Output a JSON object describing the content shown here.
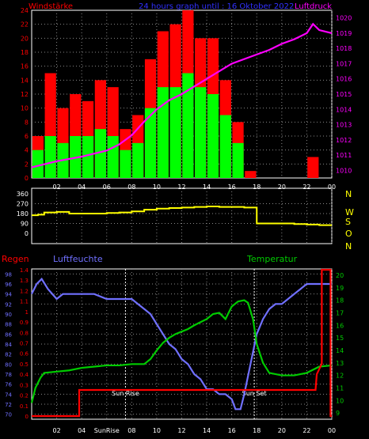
{
  "colors": {
    "wind_gust": "#ff0000",
    "wind_avg": "#00ff00",
    "pressure": "#ff00ff",
    "direction": "#ffff00",
    "rain": "#ff0000",
    "humidity": "#7070ff",
    "temperature": "#00cc00",
    "frame": "#ffffff",
    "grid": "#888888",
    "marker": "#ffffff"
  },
  "chart_data": [
    {
      "type": "bar",
      "title": "24 hours graph until : 16 Oktober 2022",
      "left_axis_label": "Windstärke",
      "right_axis_label": "Luftdruck",
      "x_ticks": [
        "02",
        "04",
        "06",
        "08",
        "10",
        "12",
        "14",
        "16",
        "18",
        "20",
        "22",
        "00"
      ],
      "y_left_ticks": [
        "0",
        "2",
        "4",
        "6",
        "8",
        "10",
        "12",
        "14",
        "16",
        "18",
        "20",
        "22",
        "24"
      ],
      "y_left_range": [
        0,
        24
      ],
      "y_right_ticks": [
        "1010",
        "1011",
        "1012",
        "1013",
        "1014",
        "1015",
        "1016",
        "1017",
        "1018",
        "1019",
        "1020"
      ],
      "y_right_range": [
        1009.5,
        1020.5
      ],
      "grid": "dotted",
      "series": [
        {
          "key": "wind_gust",
          "x": [
            0.5,
            1.5,
            2.5,
            3.5,
            4.5,
            5.5,
            6.5,
            7.5,
            8.5,
            9.5,
            10.5,
            11.5,
            12.5,
            13.5,
            14.5,
            15.5,
            16.5,
            17.5,
            18.5,
            19.5,
            20.5,
            21.5,
            22.5,
            23.5
          ],
          "values": [
            6,
            15,
            10,
            12,
            11,
            14,
            13,
            7,
            9,
            17,
            21,
            22,
            24,
            20,
            20,
            14,
            8,
            1,
            0,
            0,
            0,
            0,
            3,
            0
          ]
        },
        {
          "key": "wind_avg",
          "x": [
            0.5,
            1.5,
            2.5,
            3.5,
            4.5,
            5.5,
            6.5,
            7.5,
            8.5,
            9.5,
            10.5,
            11.5,
            12.5,
            13.5,
            14.5,
            15.5,
            16.5,
            17.5,
            18.5,
            19.5,
            20.5,
            21.5,
            22.5,
            23.5
          ],
          "values": [
            4,
            6,
            5,
            6,
            6,
            7,
            6,
            4,
            5,
            10,
            13,
            13,
            15,
            13,
            12,
            9,
            5,
            0,
            0,
            0,
            0,
            0,
            0,
            0
          ]
        },
        {
          "key": "pressure",
          "x": [
            0,
            2,
            4,
            6,
            7,
            8,
            9,
            10,
            11,
            12,
            13,
            14,
            15,
            16,
            18,
            19,
            20,
            21,
            22,
            22.5,
            23,
            24
          ],
          "values": [
            1010.2,
            1010.6,
            1010.9,
            1011.3,
            1011.7,
            1012.3,
            1013.2,
            1014,
            1014.6,
            1015,
            1015.5,
            1016,
            1016.5,
            1017,
            1017.6,
            1017.9,
            1018.3,
            1018.6,
            1019,
            1019.6,
            1019.2,
            1019.0
          ]
        }
      ]
    },
    {
      "type": "line",
      "right_axis_label_letters": [
        "N",
        "W",
        "S",
        "O",
        "N"
      ],
      "y_ticks": [
        "0",
        "90",
        "180",
        "270",
        "360"
      ],
      "y_range": [
        0,
        360
      ],
      "grid": "dotted",
      "series": [
        {
          "key": "direction",
          "x": [
            0,
            0.5,
            1,
            2,
            3,
            4,
            5,
            6,
            7,
            8,
            9,
            10,
            11,
            12,
            13,
            14,
            15,
            16,
            17,
            17.3,
            18,
            20,
            21,
            22,
            23,
            24
          ],
          "values": [
            165,
            170,
            190,
            195,
            180,
            180,
            180,
            185,
            190,
            200,
            215,
            225,
            230,
            235,
            240,
            245,
            240,
            240,
            235,
            235,
            90,
            90,
            85,
            80,
            75,
            75
          ]
        }
      ]
    },
    {
      "type": "line",
      "rain_label": "Regen",
      "humidity_label": "Luftfeuchte",
      "temperature_label": "Temperatur",
      "y_humidity_ticks": [
        "70",
        "72",
        "74",
        "76",
        "78",
        "80",
        "82",
        "84",
        "86",
        "88",
        "90",
        "92",
        "94",
        "96",
        "98"
      ],
      "y_humidity_range": [
        69,
        99
      ],
      "y_rain_ticks": [
        "0",
        "0.1",
        "0.2",
        "0.3",
        "0.4",
        "0.5",
        "0.6",
        "0.7",
        "0.8",
        "0.9",
        "1",
        "1.1",
        "1.2",
        "1.3",
        "1.4"
      ],
      "y_rain_range": [
        0,
        1.4
      ],
      "y_temp_ticks": [
        "9",
        "10",
        "11",
        "12",
        "13",
        "14",
        "15",
        "16",
        "17",
        "18",
        "19",
        "20"
      ],
      "y_temp_range": [
        8.5,
        20.5
      ],
      "x_ticks": [
        "02",
        "04",
        "SunRise",
        "08",
        "10",
        "12",
        "14",
        "16",
        "18",
        "20",
        "22",
        "00"
      ],
      "grid": "dotted",
      "markers": [
        {
          "label": "Sun Rise",
          "x": 7.5
        },
        {
          "label": "Sun Set",
          "x": 17.8
        }
      ],
      "series": [
        {
          "key": "humidity",
          "x": [
            0,
            0.4,
            0.8,
            1.3,
            2,
            2.5,
            3,
            4,
            5,
            6,
            7,
            8,
            8.5,
            9,
            9.5,
            10,
            10.5,
            11,
            11.5,
            12,
            12.5,
            13,
            13.5,
            14,
            14.5,
            15,
            15.5,
            16,
            16.3,
            16.7,
            17,
            17.5,
            18,
            18.5,
            19,
            19.5,
            20,
            20.5,
            21,
            21.5,
            22,
            23,
            24
          ],
          "values": [
            94,
            96,
            97,
            95,
            93,
            94,
            94,
            94,
            94,
            93,
            93,
            93,
            92,
            91,
            90,
            88,
            86,
            84,
            83,
            81,
            80,
            78,
            77,
            75,
            75,
            74,
            74,
            73,
            71,
            71,
            74,
            80,
            86,
            89,
            91,
            92,
            92,
            93,
            94,
            95,
            96,
            96,
            96
          ]
        },
        {
          "key": "temperature",
          "x": [
            0,
            0.3,
            0.7,
            1,
            2,
            3,
            4,
            5,
            6,
            7,
            8,
            9,
            9.5,
            10,
            10.5,
            11,
            11.5,
            12,
            12.5,
            13,
            14,
            14.5,
            15,
            15.5,
            16,
            16.5,
            17,
            17.3,
            17.7,
            18,
            18.5,
            19,
            20,
            21,
            22,
            23,
            24
          ],
          "values": [
            9.8,
            11,
            11.8,
            12.2,
            12.3,
            12.4,
            12.6,
            12.7,
            12.8,
            12.8,
            12.9,
            12.9,
            13.3,
            14,
            14.6,
            15,
            15.3,
            15.5,
            15.7,
            16,
            16.5,
            16.9,
            17,
            16.5,
            17.5,
            17.9,
            18,
            17.8,
            16.5,
            14.5,
            13,
            12.2,
            12,
            12,
            12.2,
            12.7,
            12.8
          ]
        },
        {
          "key": "rain",
          "x": [
            0,
            3.8,
            3.8,
            22.7,
            22.8,
            23.2,
            23.2,
            23.9,
            23.9,
            24
          ],
          "values": [
            0,
            0,
            0.25,
            0.25,
            0.4,
            0.5,
            1.4,
            1.4,
            0,
            0
          ]
        }
      ]
    }
  ]
}
